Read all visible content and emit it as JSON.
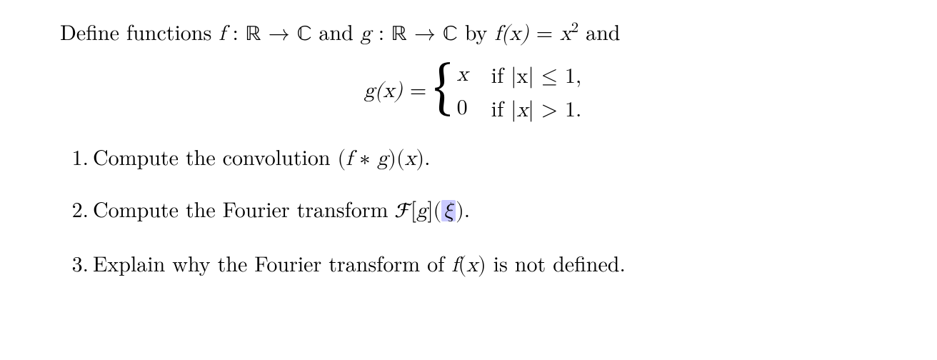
{
  "colors": {
    "text": "#000000",
    "background": "#ffffff",
    "highlight": "#c9c9ff"
  },
  "typography": {
    "body_fontsize_pt": 22,
    "body_family": "Latin Modern Roman / Computer Modern (serif)",
    "math_family": "Latin Modern Math / Cambria Math",
    "line_height": 1.35
  },
  "intro": {
    "prefix": "Define functions ",
    "f_map": "f : ℝ → ℂ",
    "mid1": " and ",
    "g_map": "g : ℝ → ℂ",
    "mid2": " by ",
    "f_def_lhs": "f(x)",
    "equals": " = ",
    "f_def_rhs_base": "x",
    "f_def_rhs_exp": "2",
    "tail": " and"
  },
  "g_piecewise": {
    "lhs": "g(x)",
    "equals": " = ",
    "case1_val": "x",
    "case1_cond_pre": "if ",
    "case1_cond": "|x| ≤ 1,",
    "case2_val": "0",
    "case2_cond_pre": "if ",
    "case2_cond": "|x| > 1."
  },
  "items": {
    "n1": "1.",
    "q1_pre": "Compute the convolution ",
    "q1_expr": "(f ∗ g)(x)",
    "q1_post": ".",
    "n2": "2.",
    "q2_pre": "Compute the Fourier transform ",
    "q2_F": "ℱ",
    "q2_bracket_open": "[",
    "q2_g": "g",
    "q2_bracket_close": "]",
    "q2_paren_open": "(",
    "q2_xi": "ξ",
    "q2_paren_close": ")",
    "q2_post": ".",
    "n3": "3.",
    "q3_pre": "Explain why the Fourier transform of ",
    "q3_fx": "f(x)",
    "q3_post": " is not defined."
  }
}
